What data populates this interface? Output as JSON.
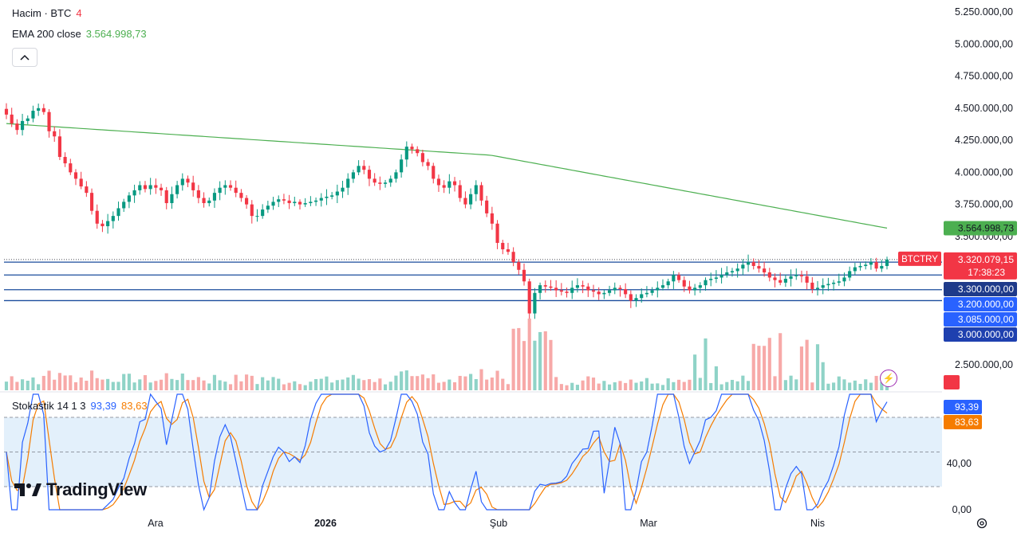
{
  "legend": {
    "volume": {
      "label": "Hacim · BTC",
      "value": "4",
      "value_color": "#f23645"
    },
    "ema": {
      "label": "EMA 200 close",
      "value": "3.564.998,73",
      "value_color": "#4caf50"
    },
    "stoch": {
      "label": "Stokastik 14 1 3",
      "k_value": "93,39",
      "d_value": "83,63",
      "k_color": "#2962ff",
      "d_color": "#f57c00"
    }
  },
  "brand": "TradingView",
  "colors": {
    "up": "#089981",
    "down": "#f23645",
    "up_vol": "#8fd3c7",
    "down_vol": "#f7a9a8",
    "ema": "#4caf50",
    "grid_line": "#1a4c9c",
    "stoch_k": "#2962ff",
    "stoch_d": "#f57c00",
    "stoch_band": "#e3f0fb"
  },
  "chart_data": [
    {
      "type": "candlestick",
      "symbol": "BTCTRY",
      "y_axis_ticks": [
        "5.250.000,00",
        "5.000.000,00",
        "4.750.000,00",
        "4.500.000,00",
        "4.250.000,00",
        "4.000.000,00",
        "3.750.000,00",
        "3.500.000,00",
        "2.500.000,00"
      ],
      "y_tick_values": [
        5250000,
        5000000,
        4750000,
        4500000,
        4250000,
        4000000,
        3750000,
        3500000,
        2500000
      ],
      "x_axis_ticks": [
        "Ara",
        "2026",
        "Şub",
        "Mar",
        "Nis"
      ],
      "last_price": "3.320.079,15",
      "countdown": "17:38:23",
      "ema_value_label": "3.564.998,73",
      "volume_label": "4",
      "horizontal_levels": [
        {
          "value": 3300000,
          "label": "3.300.000,00"
        },
        {
          "value": 3200000,
          "label": "3.200.000,00"
        },
        {
          "value": 3085000,
          "label": "3.085.000,00"
        },
        {
          "value": 3000000,
          "label": "3.000.000,00"
        }
      ],
      "closes": [
        4450000,
        4380000,
        4330000,
        4400000,
        4420000,
        4480000,
        4500000,
        4470000,
        4320000,
        4280000,
        4120000,
        4070000,
        4000000,
        3950000,
        3890000,
        3840000,
        3700000,
        3600000,
        3580000,
        3620000,
        3660000,
        3720000,
        3770000,
        3820000,
        3860000,
        3900000,
        3870000,
        3900000,
        3880000,
        3860000,
        3760000,
        3830000,
        3900000,
        3950000,
        3920000,
        3860000,
        3800000,
        3760000,
        3780000,
        3840000,
        3880000,
        3900000,
        3880000,
        3840000,
        3800000,
        3750000,
        3660000,
        3660000,
        3710000,
        3740000,
        3770000,
        3790000,
        3780000,
        3760000,
        3770000,
        3750000,
        3760000,
        3770000,
        3780000,
        3800000,
        3810000,
        3820000,
        3850000,
        3880000,
        3950000,
        4000000,
        4050000,
        4020000,
        3950000,
        3920000,
        3910000,
        3920000,
        3950000,
        4000000,
        4100000,
        4200000,
        4180000,
        4150000,
        4080000,
        4050000,
        3950000,
        3900000,
        3880000,
        3930000,
        3900000,
        3800000,
        3750000,
        3830000,
        3900000,
        3780000,
        3680000,
        3600000,
        3450000,
        3400000,
        3380000,
        3300000,
        3240000,
        3150000,
        2900000,
        3060000,
        3120000,
        3110000,
        3100000,
        3080000,
        3070000,
        3060000,
        3100000,
        3120000,
        3110000,
        3080000,
        3070000,
        3050000,
        3060000,
        3080000,
        3100000,
        3090000,
        3050000,
        3000000,
        3020000,
        3050000,
        3060000,
        3080000,
        3100000,
        3120000,
        3150000,
        3200000,
        3160000,
        3110000,
        3080000,
        3100000,
        3120000,
        3160000,
        3170000,
        3180000,
        3200000,
        3220000,
        3230000,
        3250000,
        3280000,
        3300000,
        3270000,
        3250000,
        3220000,
        3180000,
        3160000,
        3140000,
        3170000,
        3190000,
        3200000,
        3190000,
        3140000,
        3090000,
        3100000,
        3120000,
        3130000,
        3140000,
        3150000,
        3180000,
        3230000,
        3260000,
        3270000,
        3280000,
        3300000,
        3250000,
        3270000,
        3320079
      ],
      "ema_start": 4380000,
      "ema_end": 3564998.73,
      "stochastic": {
        "y_axis_ticks": [
          "40,00",
          "0,00"
        ],
        "bands": [
          80,
          50,
          20
        ],
        "k_last": 93.39,
        "d_last": 83.63,
        "ylim": [
          0,
          100
        ]
      }
    }
  ]
}
